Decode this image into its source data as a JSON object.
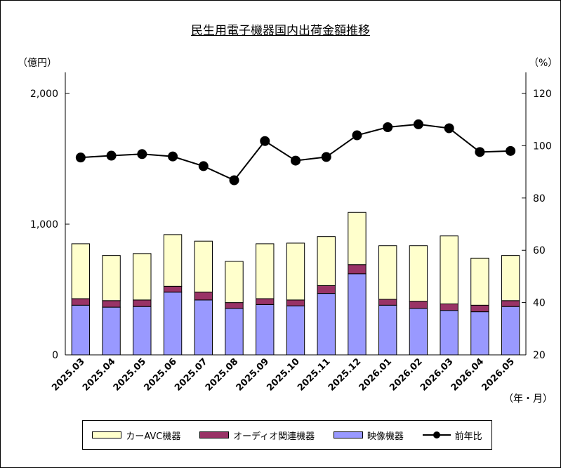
{
  "chart_data": {
    "type": "bar",
    "title": "民生用電子機器国内出荷金額推移",
    "y_unit_left": "（億円）",
    "y_unit_right": "（%）",
    "x_unit": "（年・月）",
    "categories": [
      "2025.03",
      "2025.04",
      "2025.05",
      "2025.06",
      "2025.07",
      "2025.08",
      "2025.09",
      "2025.10",
      "2025.11",
      "2025.12",
      "2026.01",
      "2026.02",
      "2026.03",
      "2026.04",
      "2026.05"
    ],
    "stacked": true,
    "series": [
      {
        "name": "映像機器",
        "color": "#9999ff",
        "values": [
          380,
          365,
          370,
          480,
          420,
          355,
          385,
          375,
          470,
          620,
          380,
          355,
          340,
          330,
          370
        ]
      },
      {
        "name": "オーディオ関連機器",
        "color": "#993366",
        "values": [
          50,
          50,
          50,
          45,
          60,
          45,
          45,
          45,
          60,
          70,
          45,
          55,
          50,
          50,
          45
        ]
      },
      {
        "name": "カーAVC機器",
        "color": "#ffffcc",
        "values": [
          420,
          345,
          355,
          395,
          390,
          315,
          420,
          435,
          375,
          400,
          410,
          425,
          520,
          360,
          345
        ]
      }
    ],
    "line_series": {
      "name": "前年比",
      "color": "#000000",
      "axis": "right",
      "values": [
        95.5,
        96.2,
        96.8,
        95.9,
        92.2,
        86.8,
        101.8,
        94.3,
        95.7,
        104.0,
        107.1,
        108.2,
        106.7,
        97.6,
        98.0
      ]
    },
    "yticks_left": [
      "0",
      "1,000",
      "2,000"
    ],
    "ylim_left": [
      0,
      2000
    ],
    "yticks_right": [
      "20",
      "40",
      "60",
      "80",
      "100",
      "120"
    ],
    "ylim_right": [
      20,
      120
    ],
    "legend": [
      {
        "label": "カーAVC機器",
        "kind": "bar",
        "color": "#ffffcc"
      },
      {
        "label": "オーディオ関連機器",
        "kind": "bar",
        "color": "#993366"
      },
      {
        "label": "映像機器",
        "kind": "bar",
        "color": "#9999ff"
      },
      {
        "label": "前年比",
        "kind": "line",
        "color": "#000000"
      }
    ],
    "legend_position": "bottom",
    "grid": false
  }
}
